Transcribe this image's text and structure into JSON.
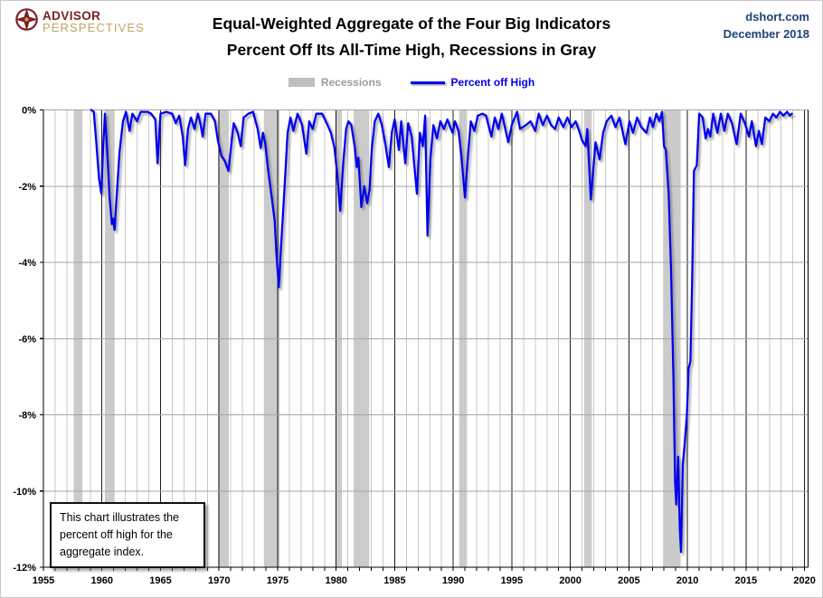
{
  "header": {
    "logo_line1": "ADVISOR",
    "logo_line2": "PERSPECTIVES",
    "title_line1": "Equal-Weighted Aggregate of the Four Big Indicators",
    "title_line2": "Percent Off Its All-Time High, Recessions in Gray",
    "source": "dshort.com",
    "date": "December 2018"
  },
  "legend": {
    "recessions_label": "Recessions",
    "series_label": "Percent off High"
  },
  "annotation": {
    "text": "This chart illustrates the percent off high for the aggregate index."
  },
  "colors": {
    "line": "#0000EE",
    "recession_fill": "#CBCBCB",
    "grid_minor": "#C9C9C9",
    "grid_major": "#1A1A1A",
    "grid_horizontal": "#A6A6A6",
    "axis": "#000000",
    "brand_maroon": "#7B2127",
    "brand_gold": "#C6A35F",
    "source_blue": "#1F4273",
    "legend_gray_text": "#9B9B9B"
  },
  "chart_data": {
    "type": "line",
    "title": "Equal-Weighted Aggregate of the Four Big Indicators — Percent Off Its All-Time High",
    "xlabel": "",
    "ylabel": "Percent off all-time high",
    "xlim": [
      1955,
      2020.3
    ],
    "ylim": [
      -12,
      0
    ],
    "grid": true,
    "legend_position": "top-center",
    "x_ticks": [
      1955,
      1960,
      1965,
      1970,
      1975,
      1980,
      1985,
      1990,
      1995,
      2000,
      2005,
      2010,
      2015,
      2020
    ],
    "y_tick_values": [
      0,
      -2,
      -4,
      -6,
      -8,
      -10,
      -12
    ],
    "y_tick_labels": [
      "0%",
      "-2%",
      "-4%",
      "-6%",
      "-8%",
      "-10%",
      "-12%"
    ],
    "recessions": [
      [
        1957.58,
        1958.33
      ],
      [
        1960.25,
        1961.08
      ],
      [
        1969.92,
        1970.83
      ],
      [
        1973.83,
        1975.17
      ],
      [
        1980.0,
        1980.5
      ],
      [
        1981.5,
        1982.83
      ],
      [
        1990.5,
        1991.17
      ],
      [
        2001.17,
        2001.83
      ],
      [
        2007.92,
        2009.42
      ]
    ],
    "series": [
      {
        "name": "Percent off High",
        "points": [
          [
            1959.08,
            0
          ],
          [
            1959.3,
            -0.05
          ],
          [
            1959.5,
            -0.8
          ],
          [
            1959.75,
            -1.8
          ],
          [
            1959.95,
            -2.2
          ],
          [
            1960.1,
            -1.0
          ],
          [
            1960.25,
            -0.1
          ],
          [
            1960.45,
            -1.1
          ],
          [
            1960.65,
            -2.3
          ],
          [
            1960.85,
            -3.0
          ],
          [
            1960.95,
            -2.85
          ],
          [
            1961.08,
            -3.15
          ],
          [
            1961.25,
            -2.3
          ],
          [
            1961.5,
            -1.1
          ],
          [
            1961.8,
            -0.3
          ],
          [
            1962.05,
            -0.05
          ],
          [
            1962.35,
            -0.55
          ],
          [
            1962.6,
            -0.1
          ],
          [
            1963.0,
            -0.3
          ],
          [
            1963.3,
            -0.05
          ],
          [
            1963.9,
            -0.05
          ],
          [
            1964.2,
            -0.1
          ],
          [
            1964.55,
            -0.25
          ],
          [
            1964.75,
            -1.4
          ],
          [
            1965.0,
            -0.1
          ],
          [
            1965.5,
            -0.05
          ],
          [
            1966.0,
            -0.1
          ],
          [
            1966.3,
            -0.35
          ],
          [
            1966.6,
            -0.15
          ],
          [
            1966.9,
            -0.7
          ],
          [
            1967.1,
            -1.45
          ],
          [
            1967.35,
            -0.5
          ],
          [
            1967.6,
            -0.2
          ],
          [
            1967.9,
            -0.5
          ],
          [
            1968.2,
            -0.1
          ],
          [
            1968.4,
            -0.35
          ],
          [
            1968.6,
            -0.7
          ],
          [
            1968.85,
            -0.1
          ],
          [
            1969.3,
            -0.1
          ],
          [
            1969.65,
            -0.3
          ],
          [
            1969.9,
            -0.8
          ],
          [
            1970.2,
            -1.2
          ],
          [
            1970.5,
            -1.35
          ],
          [
            1970.8,
            -1.6
          ],
          [
            1971.05,
            -0.9
          ],
          [
            1971.25,
            -0.35
          ],
          [
            1971.6,
            -0.6
          ],
          [
            1971.85,
            -0.95
          ],
          [
            1972.1,
            -0.2
          ],
          [
            1972.5,
            -0.1
          ],
          [
            1972.9,
            -0.05
          ],
          [
            1973.3,
            -0.5
          ],
          [
            1973.55,
            -1.0
          ],
          [
            1973.75,
            -0.6
          ],
          [
            1973.95,
            -0.9
          ],
          [
            1974.2,
            -1.6
          ],
          [
            1974.5,
            -2.3
          ],
          [
            1974.75,
            -2.9
          ],
          [
            1974.9,
            -3.8
          ],
          [
            1975.1,
            -4.65
          ],
          [
            1975.35,
            -3.3
          ],
          [
            1975.6,
            -2.0
          ],
          [
            1975.85,
            -0.6
          ],
          [
            1976.1,
            -0.2
          ],
          [
            1976.35,
            -0.55
          ],
          [
            1976.7,
            -0.1
          ],
          [
            1977.1,
            -0.4
          ],
          [
            1977.45,
            -1.15
          ],
          [
            1977.7,
            -0.3
          ],
          [
            1978.0,
            -0.5
          ],
          [
            1978.3,
            -0.1
          ],
          [
            1978.8,
            -0.1
          ],
          [
            1979.2,
            -0.35
          ],
          [
            1979.55,
            -0.6
          ],
          [
            1979.85,
            -1.0
          ],
          [
            1980.1,
            -1.7
          ],
          [
            1980.35,
            -2.65
          ],
          [
            1980.6,
            -1.4
          ],
          [
            1980.85,
            -0.5
          ],
          [
            1981.05,
            -0.3
          ],
          [
            1981.3,
            -0.4
          ],
          [
            1981.6,
            -1.0
          ],
          [
            1981.75,
            -1.5
          ],
          [
            1981.9,
            -1.25
          ],
          [
            1982.15,
            -2.55
          ],
          [
            1982.4,
            -2.0
          ],
          [
            1982.65,
            -2.45
          ],
          [
            1982.85,
            -2.1
          ],
          [
            1983.05,
            -1.0
          ],
          [
            1983.3,
            -0.3
          ],
          [
            1983.6,
            -0.1
          ],
          [
            1983.9,
            -0.4
          ],
          [
            1984.2,
            -0.9
          ],
          [
            1984.5,
            -1.5
          ],
          [
            1984.75,
            -0.6
          ],
          [
            1985.0,
            -0.25
          ],
          [
            1985.35,
            -1.05
          ],
          [
            1985.55,
            -0.3
          ],
          [
            1985.9,
            -1.4
          ],
          [
            1986.15,
            -0.35
          ],
          [
            1986.45,
            -0.7
          ],
          [
            1986.9,
            -2.2
          ],
          [
            1987.15,
            -0.6
          ],
          [
            1987.4,
            -0.95
          ],
          [
            1987.6,
            -0.15
          ],
          [
            1987.8,
            -3.3
          ],
          [
            1988.05,
            -1.3
          ],
          [
            1988.3,
            -0.4
          ],
          [
            1988.6,
            -0.75
          ],
          [
            1988.9,
            -0.3
          ],
          [
            1989.2,
            -0.5
          ],
          [
            1989.5,
            -0.25
          ],
          [
            1989.75,
            -0.45
          ],
          [
            1989.95,
            -0.6
          ],
          [
            1990.15,
            -0.3
          ],
          [
            1990.45,
            -0.55
          ],
          [
            1990.7,
            -1.2
          ],
          [
            1991.0,
            -2.3
          ],
          [
            1991.25,
            -1.2
          ],
          [
            1991.5,
            -0.3
          ],
          [
            1991.8,
            -0.55
          ],
          [
            1992.1,
            -0.15
          ],
          [
            1992.5,
            -0.1
          ],
          [
            1992.8,
            -0.15
          ],
          [
            1993.25,
            -0.7
          ],
          [
            1993.55,
            -0.2
          ],
          [
            1993.85,
            -0.5
          ],
          [
            1994.15,
            -0.1
          ],
          [
            1994.7,
            -0.85
          ],
          [
            1995.0,
            -0.4
          ],
          [
            1995.45,
            -0.05
          ],
          [
            1995.7,
            -0.5
          ],
          [
            1996.2,
            -0.4
          ],
          [
            1996.6,
            -0.3
          ],
          [
            1997.0,
            -0.55
          ],
          [
            1997.3,
            -0.1
          ],
          [
            1997.65,
            -0.4
          ],
          [
            1998.0,
            -0.15
          ],
          [
            1998.35,
            -0.4
          ],
          [
            1998.7,
            -0.5
          ],
          [
            1999.0,
            -0.2
          ],
          [
            1999.4,
            -0.45
          ],
          [
            1999.75,
            -0.2
          ],
          [
            2000.1,
            -0.45
          ],
          [
            2000.45,
            -0.3
          ],
          [
            2000.75,
            -0.55
          ],
          [
            2001.0,
            -0.8
          ],
          [
            2001.3,
            -0.95
          ],
          [
            2001.45,
            -0.5
          ],
          [
            2001.75,
            -2.35
          ],
          [
            2001.95,
            -1.6
          ],
          [
            2002.15,
            -0.85
          ],
          [
            2002.5,
            -1.3
          ],
          [
            2002.8,
            -0.6
          ],
          [
            2003.1,
            -0.3
          ],
          [
            2003.5,
            -0.15
          ],
          [
            2003.85,
            -0.45
          ],
          [
            2004.2,
            -0.2
          ],
          [
            2004.7,
            -0.9
          ],
          [
            2005.05,
            -0.3
          ],
          [
            2005.35,
            -0.6
          ],
          [
            2005.7,
            -0.2
          ],
          [
            2006.05,
            -0.45
          ],
          [
            2006.5,
            -0.6
          ],
          [
            2006.8,
            -0.2
          ],
          [
            2007.05,
            -0.45
          ],
          [
            2007.35,
            -0.1
          ],
          [
            2007.6,
            -0.3
          ],
          [
            2007.83,
            -0.05
          ],
          [
            2008.0,
            -0.95
          ],
          [
            2008.15,
            -1.05
          ],
          [
            2008.4,
            -2.2
          ],
          [
            2008.6,
            -4.2
          ],
          [
            2008.8,
            -7.0
          ],
          [
            2008.95,
            -9.8
          ],
          [
            2009.05,
            -10.35
          ],
          [
            2009.2,
            -9.1
          ],
          [
            2009.35,
            -11.0
          ],
          [
            2009.45,
            -11.6
          ],
          [
            2009.6,
            -9.3
          ],
          [
            2009.75,
            -8.8
          ],
          [
            2009.95,
            -8.0
          ],
          [
            2010.1,
            -6.8
          ],
          [
            2010.25,
            -6.6
          ],
          [
            2010.4,
            -4.5
          ],
          [
            2010.55,
            -1.6
          ],
          [
            2010.8,
            -1.45
          ],
          [
            2011.0,
            -0.1
          ],
          [
            2011.3,
            -0.2
          ],
          [
            2011.55,
            -0.75
          ],
          [
            2011.75,
            -0.5
          ],
          [
            2011.95,
            -0.7
          ],
          [
            2012.2,
            -0.1
          ],
          [
            2012.55,
            -0.6
          ],
          [
            2012.85,
            -0.1
          ],
          [
            2013.15,
            -0.55
          ],
          [
            2013.45,
            -0.1
          ],
          [
            2013.8,
            -0.35
          ],
          [
            2014.2,
            -0.9
          ],
          [
            2014.55,
            -0.1
          ],
          [
            2014.9,
            -0.35
          ],
          [
            2015.25,
            -0.7
          ],
          [
            2015.5,
            -0.3
          ],
          [
            2015.85,
            -0.95
          ],
          [
            2016.1,
            -0.55
          ],
          [
            2016.35,
            -0.9
          ],
          [
            2016.65,
            -0.2
          ],
          [
            2017.0,
            -0.3
          ],
          [
            2017.3,
            -0.1
          ],
          [
            2017.6,
            -0.2
          ],
          [
            2017.9,
            -0.05
          ],
          [
            2018.2,
            -0.15
          ],
          [
            2018.5,
            -0.05
          ],
          [
            2018.75,
            -0.15
          ],
          [
            2018.92,
            -0.1
          ]
        ]
      }
    ]
  }
}
